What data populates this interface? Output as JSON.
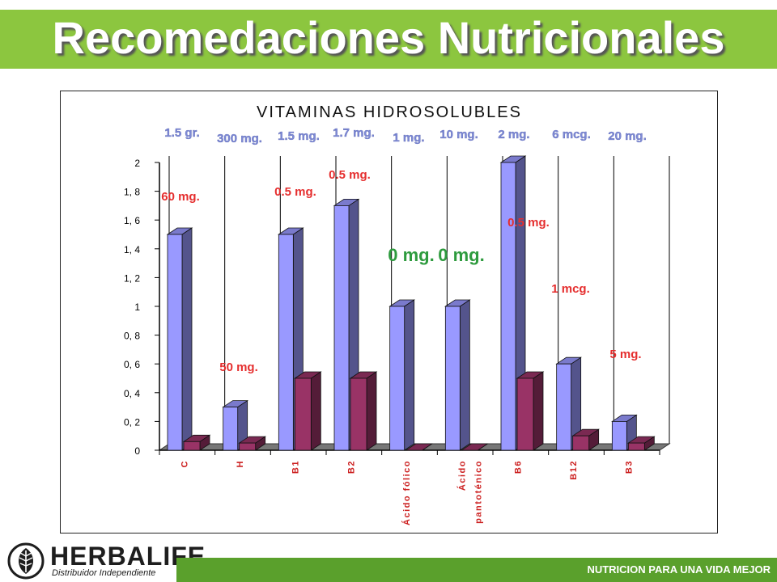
{
  "slide": {
    "title": "Recomedaciones Nutricionales",
    "footer": "NUTRICION PARA UNA VIDA MEJOR",
    "logo_word": "HERBALIFE",
    "logo_sub": "Distribuidor Independiente"
  },
  "colors": {
    "title_bar": "#8cc63f",
    "footer_bar": "#5aa02c",
    "series1": "#9999ff",
    "series2": "#993366",
    "top_label": "#7f8bd6",
    "bottom_label": "#e52e2e",
    "zero_label": "#2e9b3e"
  },
  "chart_data": {
    "type": "bar",
    "title": "VITAMINAS HIDROSOLUBLES",
    "categories": [
      "C",
      "H",
      "B1",
      "B2",
      "Ácido fólico",
      "Ácido pantoténico",
      "B6",
      "B12",
      "B3"
    ],
    "series": [
      {
        "values": [
          1.5,
          0.3,
          1.5,
          1.7,
          1.0,
          1.0,
          2.0,
          0.6,
          0.2
        ]
      },
      {
        "values": [
          0.06,
          0.05,
          0.5,
          0.5,
          0.0,
          0.0,
          0.5,
          0.1,
          0.05
        ]
      }
    ],
    "ylim": [
      0,
      2
    ],
    "yticks": [
      "0",
      "0, 2",
      "0, 4",
      "0, 6",
      "0, 8",
      "1",
      "1, 2",
      "1, 4",
      "1, 6",
      "1, 8",
      "2"
    ],
    "top_labels": [
      "1.5 gr.",
      "300 mg.",
      "1.5 mg.",
      "1.7 mg.",
      "1 mg.",
      "10 mg.",
      "2 mg.",
      "6 mcg.",
      "20 mg."
    ],
    "bottom_labels": [
      "60 mg.",
      "50 mg.",
      "0.5 mg.",
      "0.5 mg.",
      "0 mg.",
      "0 mg.",
      "0.5 mg.",
      "1 mcg.",
      "5 mg."
    ],
    "grid": true
  }
}
